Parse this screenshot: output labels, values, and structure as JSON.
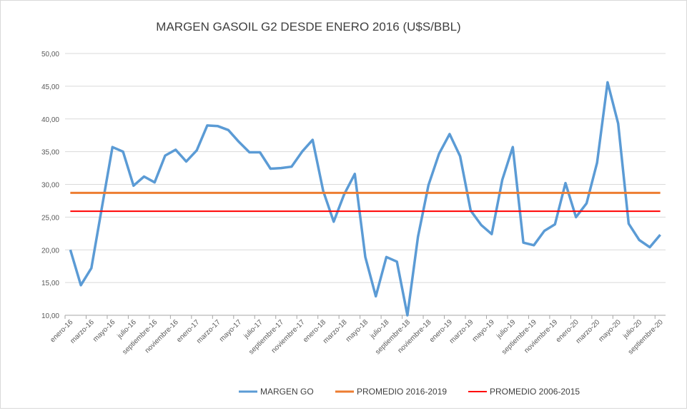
{
  "chart_data": {
    "type": "line",
    "title": "MARGEN GASOIL G2 DESDE ENERO 2016 (U$S/BBL)",
    "xlabel": "",
    "ylabel": "",
    "ylim": [
      10,
      50
    ],
    "yticks": [
      "10,00",
      "15,00",
      "20,00",
      "25,00",
      "30,00",
      "35,00",
      "40,00",
      "45,00",
      "50,00"
    ],
    "grid": true,
    "legend_position": "bottom",
    "x_tick_labels": [
      "enero-16",
      "marzo-16",
      "mayo-16",
      "julio-16",
      "septiembre-16",
      "noviembre-16",
      "enero-17",
      "marzo-17",
      "mayo-17",
      "julio-17",
      "septiembre-17",
      "noviembre-17",
      "enero-18",
      "marzo-18",
      "mayo-18",
      "julio-18",
      "septiembre-18",
      "noviembre-18",
      "enero-19",
      "marzo-19",
      "mayo-19",
      "julio-19",
      "septiembre-19",
      "noviembre-19",
      "enero-20",
      "marzo-20",
      "mayo-20",
      "julio-20",
      "septiembre-20"
    ],
    "series": [
      {
        "name": "MARGEN GO",
        "color": "#5b9bd5",
        "values": [
          20.0,
          14.6,
          17.2,
          26.5,
          35.7,
          35.0,
          29.8,
          31.2,
          30.3,
          34.4,
          35.3,
          33.5,
          35.2,
          39.0,
          38.9,
          38.3,
          36.5,
          34.9,
          34.9,
          32.4,
          32.5,
          32.7,
          35.0,
          36.8,
          29.0,
          24.3,
          28.5,
          31.6,
          18.9,
          12.9,
          18.9,
          18.2,
          10.0,
          22.0,
          29.9,
          34.7,
          37.7,
          34.3,
          26.0,
          23.8,
          22.4,
          30.7,
          35.7,
          21.1,
          20.7,
          22.9,
          23.9,
          30.2,
          25.0,
          27.1,
          33.3,
          45.6,
          39.3,
          24.0,
          21.5,
          20.4,
          22.3
        ]
      },
      {
        "name": "PROMEDIO 2016-2019",
        "color": "#ed7d31",
        "constant": 28.7
      },
      {
        "name": "PROMEDIO 2006-2015",
        "color": "#ff0000",
        "constant": 25.9
      }
    ]
  }
}
